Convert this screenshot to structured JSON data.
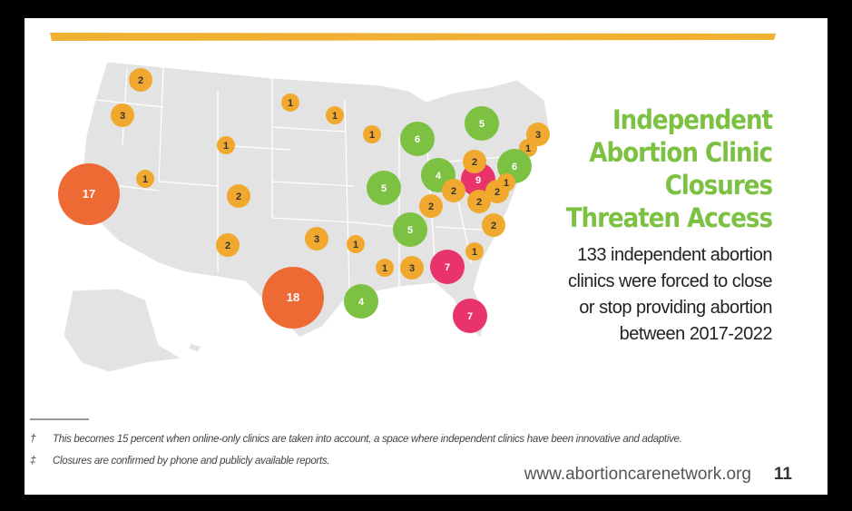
{
  "title_lines": [
    "Independent",
    "Abortion Clinic",
    "Closures",
    "Threaten Access"
  ],
  "subtitle_lines": [
    "133 independent abortion",
    "clinics were forced to close",
    "or stop providing abortion",
    "between 2017-2022"
  ],
  "markers": [
    {
      "value": 2,
      "color": "#f0a92e"
    },
    {
      "value": 3,
      "color": "#f0a92e"
    },
    {
      "value": 1,
      "color": "#f0a92e"
    },
    {
      "value": 1,
      "color": "#f0a92e"
    },
    {
      "value": 1,
      "color": "#f0a92e"
    },
    {
      "value": 1,
      "color": "#f0a92e"
    },
    {
      "value": 1,
      "color": "#f0a92e"
    },
    {
      "value": 17,
      "color": "#ee6a34"
    },
    {
      "value": 2,
      "color": "#f0a92e"
    },
    {
      "value": 2,
      "color": "#f0a92e"
    },
    {
      "value": 3,
      "color": "#f0a92e"
    },
    {
      "value": 1,
      "color": "#f0a92e"
    },
    {
      "value": 18,
      "color": "#ee6a34"
    },
    {
      "value": 4,
      "color": "#7cc142"
    },
    {
      "value": 1,
      "color": "#f0a92e"
    },
    {
      "value": 3,
      "color": "#f0a92e"
    },
    {
      "value": 7,
      "color": "#e8346b"
    },
    {
      "value": 7,
      "color": "#e8346b"
    },
    {
      "value": 6,
      "color": "#7cc142"
    },
    {
      "value": 5,
      "color": "#7cc142"
    },
    {
      "value": 3,
      "color": "#f0a92e"
    },
    {
      "value": 1,
      "color": "#f0a92e"
    },
    {
      "value": 6,
      "color": "#7cc142"
    },
    {
      "value": 4,
      "color": "#7cc142"
    },
    {
      "value": 5,
      "color": "#7cc142"
    },
    {
      "value": 9,
      "color": "#e8346b"
    },
    {
      "value": 2,
      "color": "#f0a92e"
    },
    {
      "value": 2,
      "color": "#f0a92e"
    },
    {
      "value": 2,
      "color": "#f0a92e"
    },
    {
      "value": 2,
      "color": "#f0a92e"
    },
    {
      "value": 1,
      "color": "#f0a92e"
    },
    {
      "value": 2,
      "color": "#f0a92e"
    },
    {
      "value": 5,
      "color": "#7cc142"
    },
    {
      "value": 2,
      "color": "#f0a92e"
    },
    {
      "value": 1,
      "color": "#f0a92e"
    }
  ],
  "footnotes": [
    {
      "symbol": "†",
      "text": "This becomes 15 percent when online-only clinics are taken into account, a space where independent clinics have been innovative and adaptive."
    },
    {
      "symbol": "‡",
      "text": "Closures are confirmed by phone and publicly available reports."
    }
  ],
  "website": "www.abortioncarenetwork.org",
  "page_number": "11"
}
